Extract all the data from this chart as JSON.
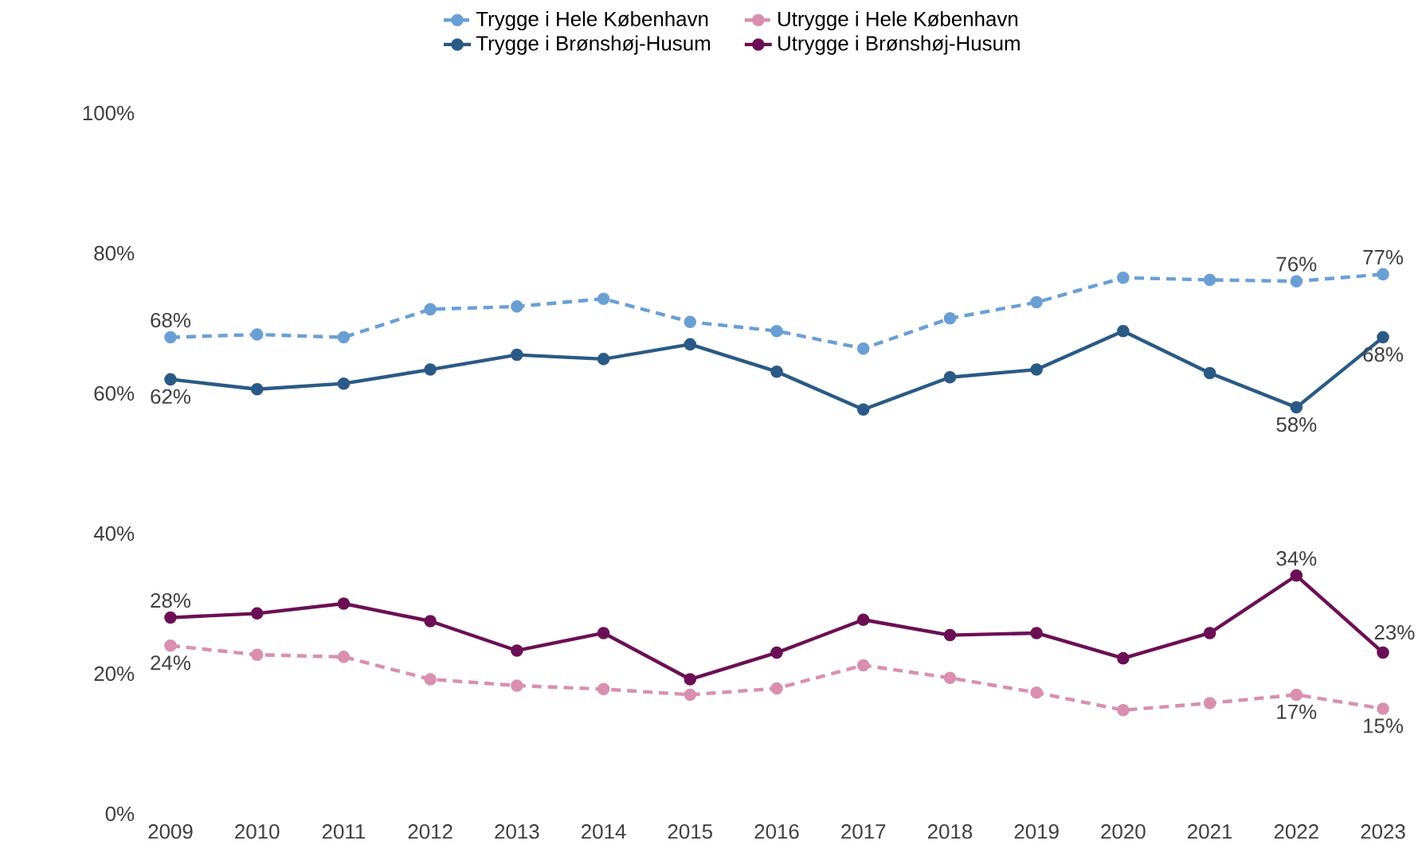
{
  "chart_data": {
    "type": "line",
    "categories": [
      "2009",
      "2010",
      "2011",
      "2012",
      "2013",
      "2014",
      "2015",
      "2016",
      "2017",
      "2018",
      "2019",
      "2020",
      "2021",
      "2022",
      "2023"
    ],
    "ylim": [
      0,
      100
    ],
    "yticks": [
      {
        "value": 0,
        "label": "0%"
      },
      {
        "value": 20,
        "label": "20%"
      },
      {
        "value": 40,
        "label": "40%"
      },
      {
        "value": 60,
        "label": "60%"
      },
      {
        "value": 80,
        "label": "80%"
      },
      {
        "value": 100,
        "label": "100%"
      }
    ],
    "grid": false,
    "legend": "top",
    "marker": "circle",
    "series": [
      {
        "name": "Trygge i Hele København",
        "color": "#6a9fd4",
        "line_style": "dashed",
        "values": [
          68,
          68.4,
          68.0,
          72.0,
          72.4,
          73.5,
          70.2,
          68.9,
          66.4,
          70.7,
          73.0,
          76.5,
          76.2,
          76,
          77
        ],
        "value_labels": [
          "68%",
          null,
          null,
          null,
          null,
          null,
          null,
          null,
          null,
          null,
          null,
          null,
          null,
          "76%",
          "77%"
        ]
      },
      {
        "name": "Utrygge i Hele København",
        "color": "#d98fb0",
        "line_style": "dashed",
        "values": [
          24,
          22.7,
          22.4,
          19.2,
          18.3,
          17.8,
          17.0,
          17.9,
          21.2,
          19.4,
          17.3,
          14.8,
          15.8,
          17,
          15
        ],
        "value_labels": [
          "24%",
          null,
          null,
          null,
          null,
          null,
          null,
          null,
          null,
          null,
          null,
          null,
          null,
          "17%",
          "15%"
        ]
      },
      {
        "name": "Trygge i Brønshøj-Husum",
        "color": "#2a5a85",
        "line_style": "solid",
        "values": [
          62,
          60.6,
          61.4,
          63.4,
          65.5,
          64.9,
          67.0,
          63.1,
          57.7,
          62.3,
          63.4,
          68.9,
          62.9,
          58,
          68
        ],
        "value_labels": [
          "62%",
          null,
          null,
          null,
          null,
          null,
          null,
          null,
          null,
          null,
          null,
          null,
          null,
          "58%",
          "68%"
        ]
      },
      {
        "name": "Utrygge i Brønshøj-Husum",
        "color": "#6b0f54",
        "line_style": "solid",
        "values": [
          28,
          28.6,
          30.0,
          27.5,
          23.3,
          25.8,
          19.2,
          23.0,
          27.7,
          25.5,
          25.8,
          22.2,
          25.8,
          34,
          23
        ],
        "value_labels": [
          "28%",
          null,
          null,
          null,
          null,
          null,
          null,
          null,
          null,
          null,
          null,
          null,
          null,
          "34%",
          "23%"
        ]
      }
    ]
  }
}
